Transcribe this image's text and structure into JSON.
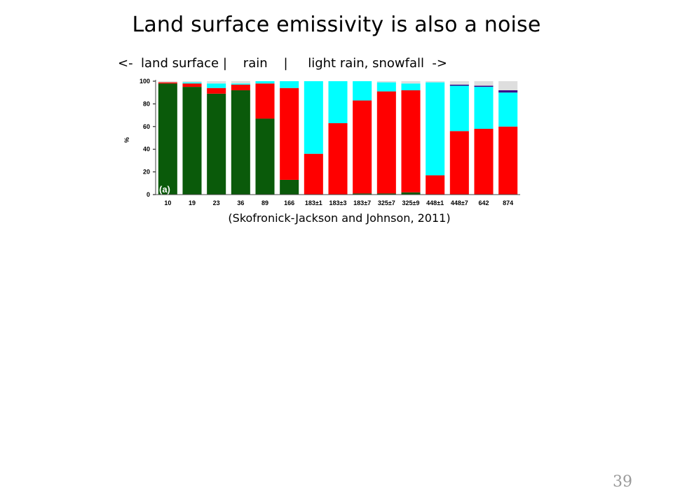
{
  "slide": {
    "title": "Land surface emissivity is also a noise",
    "subtitle": "<-  land surface |    rain    |     light rain, snowfall  ->",
    "citation": "(Skofronick-Jackson and Johnson, 2011)",
    "page_number": "39"
  },
  "chart_data": {
    "type": "bar",
    "stacked": true,
    "ylabel": "%",
    "ylim": [
      0,
      100
    ],
    "yticks": [
      0,
      20,
      40,
      60,
      80,
      100
    ],
    "panel_label": "(a)",
    "categories": [
      "10",
      "19",
      "23",
      "36",
      "89",
      "166",
      "183±1",
      "183±3",
      "183±7",
      "325±7",
      "325±9",
      "448±1",
      "448±7",
      "642",
      "874"
    ],
    "series": [
      {
        "color": "#0a5a0a",
        "values": [
          98,
          95,
          89,
          92,
          67,
          13,
          0,
          0,
          1,
          1,
          2,
          0,
          0,
          0,
          0
        ]
      },
      {
        "color": "#ff0000",
        "values": [
          1,
          3,
          5,
          5,
          31,
          81,
          36,
          63,
          82,
          90,
          90,
          17,
          56,
          58,
          60
        ]
      },
      {
        "color": "#00ffff",
        "values": [
          0,
          1,
          4,
          1,
          2,
          6,
          64,
          37,
          17,
          8,
          6,
          82,
          40,
          37,
          30
        ]
      },
      {
        "color": "#3a0a8a",
        "values": [
          0,
          0,
          0,
          0,
          0,
          0,
          0,
          0,
          0,
          0,
          0,
          0,
          1,
          1,
          2
        ]
      },
      {
        "color": "#dedede",
        "values": [
          1,
          1,
          2,
          2,
          0,
          0,
          0,
          0,
          0,
          1,
          2,
          1,
          3,
          4,
          8
        ]
      }
    ]
  }
}
